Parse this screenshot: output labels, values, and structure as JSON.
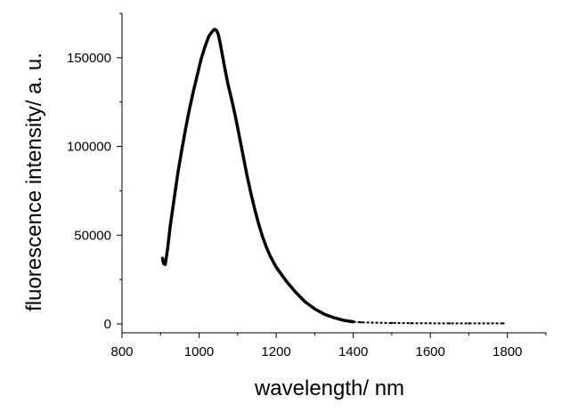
{
  "chart_data": {
    "type": "line",
    "title": "",
    "xlabel": "wavelength/ nm",
    "ylabel": "fluorescence intensity/ a. u.",
    "xlim": [
      800,
      1900
    ],
    "ylim": [
      -5000,
      175000
    ],
    "xticks": [
      800,
      1000,
      1200,
      1400,
      1600,
      1800
    ],
    "yticks": [
      0,
      50000,
      100000,
      150000
    ],
    "xtick_labels": [
      "800",
      "1000",
      "1200",
      "1400",
      "1600",
      "1800"
    ],
    "ytick_labels": [
      "0",
      "50000",
      "100000",
      "150000"
    ],
    "grid": false,
    "legend": "none",
    "series": [
      {
        "color": "#000000",
        "x": [
          905,
          908,
          912,
          918,
          925,
          935,
          945,
          955,
          965,
          975,
          985,
          995,
          1005,
          1015,
          1025,
          1035,
          1040,
          1045,
          1050,
          1055,
          1065,
          1075,
          1085,
          1095,
          1105,
          1115,
          1125,
          1135,
          1145,
          1155,
          1165,
          1175,
          1185,
          1195,
          1200,
          1210,
          1225,
          1250,
          1275,
          1300,
          1325,
          1350,
          1375,
          1400,
          1420,
          1450,
          1500,
          1550,
          1600,
          1650,
          1700,
          1750,
          1790
        ],
        "y": [
          37000,
          34000,
          33500,
          42000,
          55000,
          70000,
          85000,
          98000,
          110000,
          121000,
          131000,
          140000,
          149000,
          156000,
          162000,
          165000,
          166000,
          165500,
          163000,
          158000,
          146000,
          135000,
          126000,
          116000,
          105000,
          94000,
          83000,
          73000,
          64000,
          56000,
          49000,
          43000,
          38000,
          34000,
          32000,
          29000,
          24500,
          18000,
          12500,
          8500,
          5500,
          3500,
          2000,
          1200,
          900,
          700,
          500,
          400,
          350,
          300,
          300,
          300,
          300
        ]
      }
    ]
  }
}
